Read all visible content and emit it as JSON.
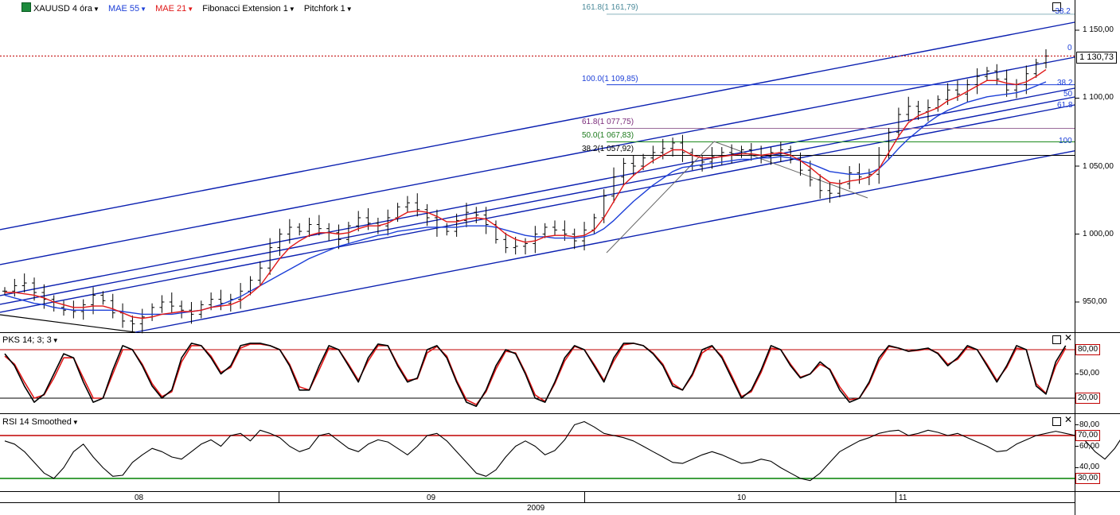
{
  "header": {
    "symbol": "XAUUSD 4 óra",
    "mae55": "MAE 55",
    "mae21": "MAE 21",
    "fib": "Fibonacci Extension 1",
    "pitchfork": "Pitchfork 1",
    "pks": "PKS 14; 3; 3",
    "rsi": "RSI 14 Smoothed"
  },
  "price_axis": {
    "ticks": [
      "1 150,00",
      "1 100,00",
      "1 050,00",
      "1 000,00",
      "950,00"
    ],
    "current": "1 130,73"
  },
  "fib_labels": {
    "f161": "161.8(1 161,79)",
    "f100": "100.0(1 109,85)",
    "f618": "61.8(1 077,75)",
    "f50": "50.0(1 067,83)",
    "f382": "38.2(1 057,92)",
    "r382a": "-38.2",
    "r0": "0",
    "r382": "38.2",
    "r50": "50",
    "r618": "61.8",
    "r100": "100"
  },
  "pks_axis": {
    "upper": "80,00",
    "mid": "50,00",
    "lower": "20,00"
  },
  "rsi_axis": {
    "t80": "80,00",
    "upper": "70,00",
    "t60": "60,00",
    "t40": "40,00",
    "lower": "30,00"
  },
  "time_axis": {
    "m08": "08",
    "m09": "09",
    "m10": "10",
    "m11": "11",
    "year": "2009"
  },
  "colors": {
    "price": "#000000",
    "mae55": "#1c3fd8",
    "mae21": "#e01818",
    "pitchfork": "#0a1fb0",
    "stoch_k": "#000000",
    "stoch_d": "#e01818",
    "level": "#c00000",
    "rsi_low": "#008000"
  },
  "chart_data": [
    {
      "type": "line",
      "title": "XAUUSD 4 óra",
      "series": [
        {
          "name": "XAUUSD 4 óra",
          "values": [
            958,
            962,
            964,
            957,
            952,
            946,
            944,
            943,
            948,
            955,
            951,
            942,
            936,
            934,
            939,
            946,
            950,
            947,
            944,
            941,
            948,
            952,
            949,
            952,
            958,
            966,
            975,
            990,
            1000,
            1005,
            1002,
            1007,
            1004,
            1001,
            996,
            1006,
            1012,
            1008,
            1006,
            1012,
            1020,
            1023,
            1018,
            1012,
            1005,
            1002,
            1010,
            1016,
            1014,
            1007,
            996,
            990,
            991,
            993,
            1000,
            1005,
            1003,
            1000,
            995,
            1003,
            1012,
            1028,
            1042,
            1052,
            1050,
            1056,
            1060,
            1063,
            1067,
            1060,
            1050,
            1053,
            1057,
            1060,
            1059,
            1062,
            1058,
            1057,
            1060,
            1062,
            1055,
            1047,
            1040,
            1032,
            1030,
            1037,
            1045,
            1042,
            1044,
            1058,
            1075,
            1088,
            1094,
            1090,
            1093,
            1099,
            1106,
            1103,
            1110,
            1116,
            1120,
            1114,
            1106,
            1110,
            1118,
            1126,
            1131
          ]
        },
        {
          "name": "MAE 55",
          "values": [
            955,
            953,
            951,
            949,
            948,
            946,
            945,
            944,
            944,
            944,
            944,
            944,
            943,
            942,
            941,
            941,
            941,
            941,
            942,
            943,
            944,
            946,
            948,
            951,
            954,
            958,
            962,
            966,
            970,
            974,
            978,
            982,
            985,
            988,
            991,
            993,
            995,
            997,
            999,
            1000,
            1002,
            1003,
            1004,
            1005,
            1005,
            1005,
            1005,
            1006,
            1006,
            1006,
            1005,
            1003,
            1001,
            999,
            998,
            998,
            997,
            997,
            997,
            998,
            1000,
            1004,
            1010,
            1017,
            1024,
            1030,
            1036,
            1041,
            1046,
            1049,
            1050,
            1051,
            1052,
            1053,
            1054,
            1055,
            1055,
            1056,
            1056,
            1057,
            1056,
            1054,
            1052,
            1049,
            1046,
            1045,
            1044,
            1044,
            1045,
            1048,
            1055,
            1063,
            1070,
            1076,
            1082,
            1087,
            1091,
            1094,
            1097,
            1099,
            1101,
            1102,
            1103,
            1104,
            1106,
            1109,
            1112
          ]
        },
        {
          "name": "MAE 21",
          "values": [
            957,
            957,
            956,
            955,
            953,
            950,
            948,
            946,
            946,
            947,
            947,
            945,
            942,
            939,
            938,
            939,
            941,
            942,
            943,
            943,
            944,
            946,
            947,
            948,
            951,
            956,
            962,
            972,
            982,
            990,
            995,
            999,
            1001,
            1001,
            1000,
            1001,
            1004,
            1006,
            1006,
            1008,
            1012,
            1016,
            1017,
            1016,
            1013,
            1009,
            1009,
            1011,
            1012,
            1011,
            1006,
            1000,
            996,
            994,
            995,
            998,
            999,
            999,
            998,
            999,
            1003,
            1012,
            1024,
            1036,
            1043,
            1049,
            1054,
            1058,
            1062,
            1062,
            1058,
            1056,
            1056,
            1057,
            1058,
            1059,
            1059,
            1058,
            1059,
            1060,
            1058,
            1054,
            1049,
            1043,
            1038,
            1037,
            1039,
            1040,
            1042,
            1048,
            1060,
            1072,
            1082,
            1087,
            1090,
            1093,
            1098,
            1101,
            1105,
            1109,
            1113,
            1113,
            1111,
            1110,
            1112,
            1116,
            1121
          ]
        }
      ],
      "ylim": [
        927,
        1170
      ]
    },
    {
      "type": "line",
      "title": "PKS 14; 3; 3",
      "series": [
        {
          "name": "PKS 14; 3; 3",
          "values": [
            75,
            60,
            35,
            15,
            25,
            50,
            75,
            70,
            40,
            15,
            20,
            55,
            85,
            80,
            60,
            35,
            20,
            30,
            70,
            88,
            85,
            70,
            50,
            60,
            85,
            88,
            88,
            85,
            80,
            60,
            30,
            30,
            60,
            85,
            80,
            60,
            40,
            70,
            87,
            85,
            60,
            40,
            45,
            80,
            85,
            70,
            40,
            15,
            10,
            30,
            60,
            80,
            75,
            50,
            20,
            15,
            40,
            70,
            85,
            80,
            60,
            40,
            70,
            88,
            88,
            85,
            75,
            60,
            35,
            30,
            50,
            80,
            85,
            70,
            45,
            20,
            30,
            55,
            85,
            80,
            60,
            45,
            50,
            65,
            55,
            30,
            15,
            20,
            40,
            70,
            85,
            82,
            78,
            80,
            82,
            75,
            60,
            70,
            85,
            80,
            60,
            40,
            60,
            85,
            80,
            35,
            25,
            65,
            85
          ]
        },
        {
          "name": "PKS 14; 3; 3 signal",
          "values": [
            72,
            62,
            40,
            20,
            24,
            45,
            70,
            70,
            45,
            20,
            20,
            50,
            80,
            80,
            62,
            38,
            22,
            28,
            65,
            85,
            85,
            72,
            52,
            58,
            82,
            87,
            87,
            85,
            80,
            62,
            34,
            30,
            55,
            82,
            80,
            62,
            42,
            66,
            85,
            85,
            62,
            42,
            44,
            76,
            84,
            72,
            42,
            18,
            12,
            28,
            56,
            78,
            76,
            52,
            24,
            16,
            38,
            66,
            84,
            80,
            62,
            42,
            66,
            86,
            88,
            85,
            76,
            62,
            38,
            30,
            48,
            76,
            84,
            72,
            48,
            22,
            28,
            52,
            82,
            80,
            62,
            46,
            50,
            62,
            56,
            34,
            18,
            20,
            38,
            66,
            84,
            82,
            78,
            79,
            81,
            76,
            62,
            68,
            83,
            80,
            62,
            42,
            58,
            82,
            80,
            38,
            26,
            60,
            82
          ]
        }
      ],
      "ylim": [
        0,
        100
      ]
    },
    {
      "type": "line",
      "title": "RSI 14 Smoothed",
      "series": [
        {
          "name": "RSI 14 Smoothed",
          "values": [
            65,
            62,
            55,
            45,
            35,
            30,
            40,
            55,
            62,
            50,
            40,
            32,
            33,
            45,
            52,
            58,
            55,
            50,
            48,
            55,
            62,
            66,
            60,
            70,
            72,
            65,
            75,
            72,
            68,
            60,
            55,
            58,
            70,
            72,
            65,
            58,
            55,
            62,
            66,
            64,
            58,
            52,
            60,
            70,
            72,
            65,
            55,
            45,
            35,
            32,
            38,
            50,
            60,
            65,
            60,
            52,
            56,
            66,
            80,
            83,
            78,
            72,
            70,
            68,
            65,
            60,
            55,
            50,
            45,
            44,
            48,
            52,
            55,
            52,
            48,
            44,
            45,
            48,
            46,
            40,
            35,
            30,
            28,
            35,
            45,
            55,
            60,
            65,
            68,
            72,
            74,
            75,
            70,
            72,
            75,
            73,
            70,
            72,
            68,
            64,
            60,
            55,
            56,
            62,
            66,
            70,
            72,
            74,
            72,
            70,
            65,
            55,
            48,
            58,
            72
          ]
        }
      ],
      "ylim": [
        20,
        85
      ]
    }
  ]
}
